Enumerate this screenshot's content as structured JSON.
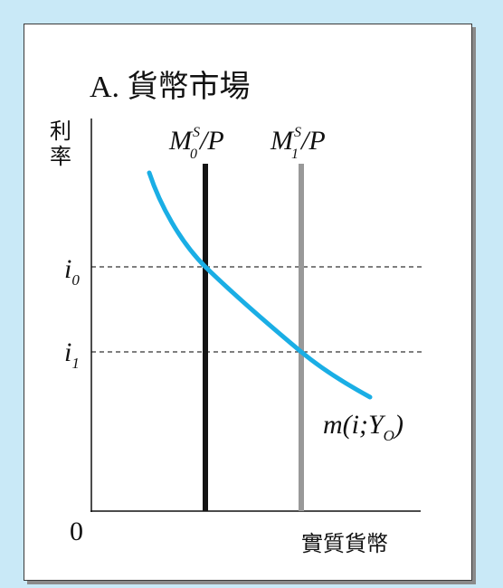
{
  "panel": {
    "title": "A. 貨幣市場"
  },
  "colors": {
    "demand_curve": "#1aaee5",
    "supply_0": "#141414",
    "supply_1": "#999999",
    "axis": "#111111",
    "guide": "#333333",
    "background": "#c9e9f7"
  },
  "axes": {
    "y_label_line1": "利",
    "y_label_line2": "率",
    "x_label": "實質貨幣",
    "origin": "0",
    "i0_base": "i",
    "i0_sub": "0",
    "i1_base": "i",
    "i1_sub": "1"
  },
  "supply_curves": {
    "ms0": {
      "base": "M",
      "sup": "S",
      "sub": "0",
      "tail": "/P"
    },
    "ms1": {
      "base": "M",
      "sup": "S",
      "sub": "1",
      "tail": "/P"
    }
  },
  "demand_curve": {
    "label_pre": "m(i;Y",
    "label_sub": "O",
    "label_post": ")"
  }
}
